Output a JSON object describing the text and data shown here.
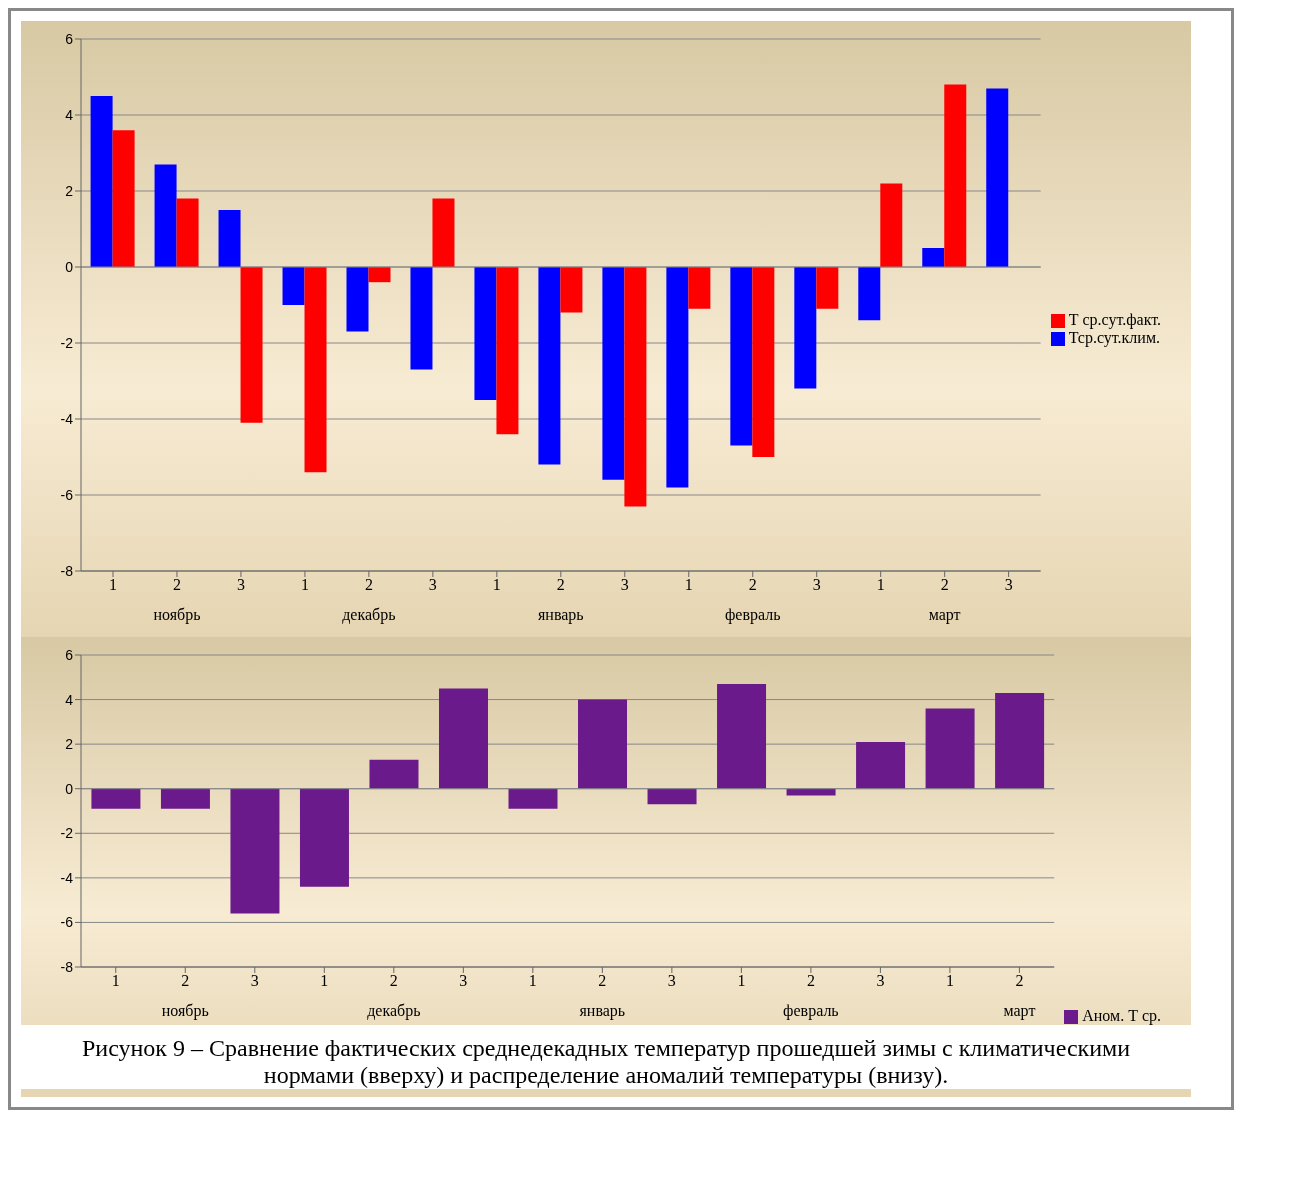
{
  "chart_data": [
    {
      "type": "bar",
      "categories": [
        "1",
        "2",
        "3",
        "1",
        "2",
        "3",
        "1",
        "2",
        "3",
        "1",
        "2",
        "3",
        "1",
        "2",
        "3"
      ],
      "series": [
        {
          "name": "Тср.сут.клим.",
          "color": "#0000ff",
          "values": [
            4.5,
            2.7,
            1.5,
            -1.0,
            -1.7,
            -2.7,
            -3.5,
            -5.2,
            -5.6,
            -5.8,
            -4.7,
            -3.2,
            -1.4,
            0.5,
            4.7
          ]
        },
        {
          "name": "Т ср.сут.факт.",
          "color": "#ff0000",
          "values": [
            3.6,
            1.8,
            -4.1,
            -5.4,
            -0.4,
            1.8,
            -4.4,
            -1.2,
            -6.3,
            -1.1,
            -5.0,
            -1.1,
            2.2,
            4.8,
            null
          ]
        }
      ],
      "ylim": [
        -8,
        6
      ],
      "yticks": [
        -8,
        -6,
        -4,
        -2,
        0,
        2,
        4,
        6
      ],
      "grid": "y",
      "legend": "right",
      "annotations": [
        "ноябрь",
        "декабрь",
        "январь",
        "февраль",
        "март"
      ]
    },
    {
      "type": "bar",
      "categories": [
        "1",
        "2",
        "3",
        "1",
        "2",
        "3",
        "1",
        "2",
        "3",
        "1",
        "2",
        "3",
        "1",
        "2"
      ],
      "series": [
        {
          "name": "Аном. Т ср.",
          "color": "#6a1a8a",
          "values": [
            -0.9,
            -0.9,
            -5.6,
            -4.4,
            1.3,
            4.5,
            -0.9,
            4.0,
            -0.7,
            4.7,
            -0.3,
            2.1,
            3.6,
            4.3
          ]
        }
      ],
      "ylim": [
        -8,
        6
      ],
      "yticks": [
        -8,
        -6,
        -4,
        -2,
        0,
        2,
        4,
        6
      ],
      "grid": "y",
      "legend": "bottom right",
      "annotations": [
        "ноябрь",
        "декабрь",
        "январь",
        "февраль",
        "март",
        "Рисунок 9 – Сравнение фактических среднедекадных температур прошедшей зимы с климатическими нормами (вверху) и распределение аномалий температуры (внизу)."
      ]
    }
  ]
}
